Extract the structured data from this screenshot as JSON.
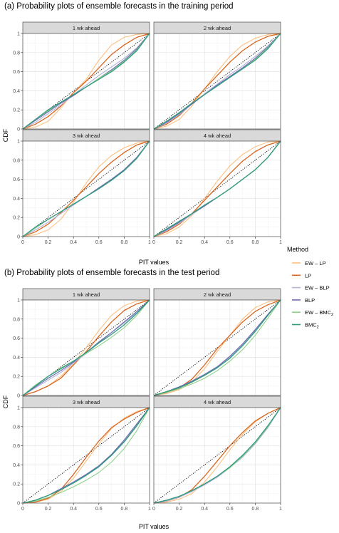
{
  "chart_data": [
    {
      "type": "line",
      "title": "(a) Probability plots of ensemble forecasts in the training period",
      "xlabel": "PIT values",
      "ylabel": "CDF",
      "xlim": [
        0,
        1
      ],
      "ylim": [
        0,
        1
      ],
      "x_ticks": [
        "0",
        "0.2",
        "0.4",
        "0.6",
        "0.8",
        "1"
      ],
      "y_ticks": [
        "0",
        "0.2",
        "0.4",
        "0.6",
        "0.8",
        "1"
      ],
      "grid": true,
      "reference_line": "diagonal, dotted",
      "x": [
        0,
        0.1,
        0.2,
        0.3,
        0.4,
        0.5,
        0.6,
        0.7,
        0.8,
        0.9,
        1
      ],
      "panels": [
        {
          "label": "1 wk ahead",
          "series": [
            {
              "name": "EW – LP",
              "values": [
                0,
                0.02,
                0.08,
                0.22,
                0.38,
                0.52,
                0.72,
                0.88,
                0.96,
                0.99,
                1
              ]
            },
            {
              "name": "LP",
              "values": [
                0,
                0.05,
                0.13,
                0.24,
                0.38,
                0.5,
                0.64,
                0.78,
                0.88,
                0.96,
                1
              ]
            },
            {
              "name": "EW – BLP",
              "values": [
                0,
                0.07,
                0.16,
                0.25,
                0.36,
                0.46,
                0.56,
                0.65,
                0.74,
                0.85,
                1
              ]
            },
            {
              "name": "BLP",
              "values": [
                0,
                0.09,
                0.18,
                0.27,
                0.35,
                0.44,
                0.53,
                0.62,
                0.72,
                0.84,
                1
              ]
            },
            {
              "name": "EW – BMC₂",
              "values": [
                0,
                0.1,
                0.19,
                0.28,
                0.36,
                0.44,
                0.53,
                0.61,
                0.71,
                0.83,
                1
              ]
            },
            {
              "name": "BMC₂",
              "values": [
                0,
                0.1,
                0.2,
                0.28,
                0.36,
                0.44,
                0.52,
                0.6,
                0.7,
                0.82,
                1
              ]
            }
          ]
        },
        {
          "label": "2 wk ahead",
          "series": [
            {
              "name": "EW – LP",
              "values": [
                0,
                0.03,
                0.1,
                0.24,
                0.42,
                0.6,
                0.76,
                0.88,
                0.95,
                0.99,
                1
              ]
            },
            {
              "name": "LP",
              "values": [
                0,
                0.05,
                0.14,
                0.27,
                0.42,
                0.56,
                0.7,
                0.82,
                0.91,
                0.97,
                1
              ]
            },
            {
              "name": "EW – BLP",
              "values": [
                0,
                0.06,
                0.15,
                0.26,
                0.37,
                0.47,
                0.57,
                0.66,
                0.76,
                0.87,
                1
              ]
            },
            {
              "name": "BLP",
              "values": [
                0,
                0.07,
                0.16,
                0.26,
                0.36,
                0.46,
                0.55,
                0.64,
                0.74,
                0.86,
                1
              ]
            },
            {
              "name": "EW – BMC₂",
              "values": [
                0,
                0.08,
                0.17,
                0.27,
                0.36,
                0.45,
                0.54,
                0.63,
                0.73,
                0.85,
                1
              ]
            },
            {
              "name": "BMC₂",
              "values": [
                0,
                0.08,
                0.17,
                0.27,
                0.36,
                0.45,
                0.54,
                0.63,
                0.72,
                0.84,
                1
              ]
            }
          ]
        },
        {
          "label": "3 wk ahead",
          "series": [
            {
              "name": "EW – LP",
              "values": [
                0,
                0.02,
                0.07,
                0.18,
                0.36,
                0.56,
                0.73,
                0.85,
                0.93,
                0.98,
                1
              ]
            },
            {
              "name": "LP",
              "values": [
                0,
                0.05,
                0.13,
                0.25,
                0.38,
                0.52,
                0.66,
                0.78,
                0.88,
                0.96,
                1
              ]
            },
            {
              "name": "EW – BLP",
              "values": [
                0,
                0.07,
                0.15,
                0.24,
                0.33,
                0.42,
                0.51,
                0.6,
                0.7,
                0.83,
                1
              ]
            },
            {
              "name": "BLP",
              "values": [
                0,
                0.09,
                0.18,
                0.26,
                0.34,
                0.42,
                0.51,
                0.6,
                0.7,
                0.83,
                1
              ]
            },
            {
              "name": "EW – BMC₂",
              "values": [
                0,
                0.09,
                0.18,
                0.26,
                0.34,
                0.42,
                0.5,
                0.59,
                0.69,
                0.82,
                1
              ]
            },
            {
              "name": "BMC₂",
              "values": [
                0,
                0.1,
                0.18,
                0.26,
                0.34,
                0.42,
                0.5,
                0.59,
                0.69,
                0.82,
                1
              ]
            }
          ]
        },
        {
          "label": "4 wk ahead",
          "series": [
            {
              "name": "EW – LP",
              "values": [
                0,
                0.03,
                0.1,
                0.22,
                0.4,
                0.58,
                0.74,
                0.86,
                0.94,
                0.99,
                1
              ]
            },
            {
              "name": "LP",
              "values": [
                0,
                0.05,
                0.13,
                0.24,
                0.38,
                0.52,
                0.66,
                0.79,
                0.89,
                0.96,
                1
              ]
            },
            {
              "name": "EW – BLP",
              "values": [
                0,
                0.06,
                0.14,
                0.23,
                0.32,
                0.41,
                0.5,
                0.6,
                0.7,
                0.83,
                1
              ]
            },
            {
              "name": "BLP",
              "values": [
                0,
                0.07,
                0.15,
                0.24,
                0.32,
                0.41,
                0.5,
                0.6,
                0.7,
                0.83,
                1
              ]
            },
            {
              "name": "EW – BMC₂",
              "values": [
                0,
                0.08,
                0.16,
                0.24,
                0.33,
                0.41,
                0.5,
                0.6,
                0.7,
                0.83,
                1
              ]
            },
            {
              "name": "BMC₂",
              "values": [
                0,
                0.08,
                0.16,
                0.24,
                0.33,
                0.41,
                0.5,
                0.6,
                0.7,
                0.83,
                1
              ]
            }
          ]
        }
      ]
    },
    {
      "type": "line",
      "title": "(b) Probability plots of ensemble forecasts in the test period",
      "xlabel": "PIT values",
      "ylabel": "CDF",
      "xlim": [
        0,
        1
      ],
      "ylim": [
        0,
        1
      ],
      "x_ticks": [
        "0",
        "0.2",
        "0.4",
        "0.6",
        "0.8",
        "1"
      ],
      "y_ticks": [
        "0",
        "0.2",
        "0.4",
        "0.6",
        "0.8",
        "1"
      ],
      "grid": true,
      "reference_line": "diagonal, dotted",
      "x": [
        0,
        0.1,
        0.2,
        0.3,
        0.4,
        0.5,
        0.6,
        0.7,
        0.8,
        0.9,
        1
      ],
      "panels": [
        {
          "label": "1 wk ahead",
          "series": [
            {
              "name": "EW – LP",
              "values": [
                0,
                0.04,
                0.1,
                0.2,
                0.34,
                0.5,
                0.68,
                0.84,
                0.94,
                0.99,
                1
              ]
            },
            {
              "name": "LP",
              "values": [
                0,
                0.04,
                0.1,
                0.18,
                0.32,
                0.46,
                0.62,
                0.77,
                0.89,
                0.96,
                1
              ]
            },
            {
              "name": "EW – BLP",
              "values": [
                0,
                0.08,
                0.16,
                0.24,
                0.34,
                0.44,
                0.55,
                0.66,
                0.76,
                0.87,
                1
              ]
            },
            {
              "name": "BLP",
              "values": [
                0,
                0.09,
                0.18,
                0.26,
                0.35,
                0.45,
                0.56,
                0.66,
                0.77,
                0.88,
                1
              ]
            },
            {
              "name": "EW – BMC₂",
              "values": [
                0,
                0.11,
                0.2,
                0.29,
                0.36,
                0.44,
                0.52,
                0.61,
                0.71,
                0.84,
                1
              ]
            },
            {
              "name": "BMC₂",
              "values": [
                0,
                0.1,
                0.2,
                0.28,
                0.36,
                0.45,
                0.55,
                0.64,
                0.74,
                0.86,
                1
              ]
            }
          ]
        },
        {
          "label": "2 wk ahead",
          "series": [
            {
              "name": "EW – LP",
              "values": [
                0,
                0.02,
                0.06,
                0.14,
                0.28,
                0.46,
                0.63,
                0.8,
                0.92,
                0.98,
                1
              ]
            },
            {
              "name": "LP",
              "values": [
                0,
                0.03,
                0.08,
                0.17,
                0.32,
                0.49,
                0.63,
                0.77,
                0.88,
                0.95,
                1
              ]
            },
            {
              "name": "EW – BLP",
              "values": [
                0,
                0.04,
                0.09,
                0.15,
                0.22,
                0.3,
                0.4,
                0.53,
                0.68,
                0.84,
                1
              ]
            },
            {
              "name": "BLP",
              "values": [
                0,
                0.04,
                0.09,
                0.15,
                0.22,
                0.3,
                0.41,
                0.54,
                0.69,
                0.85,
                1
              ]
            },
            {
              "name": "EW – BMC₂",
              "values": [
                0,
                0.03,
                0.07,
                0.12,
                0.18,
                0.26,
                0.36,
                0.48,
                0.63,
                0.81,
                1
              ]
            },
            {
              "name": "BMC₂",
              "values": [
                0,
                0.04,
                0.08,
                0.14,
                0.21,
                0.29,
                0.39,
                0.52,
                0.67,
                0.84,
                1
              ]
            }
          ]
        },
        {
          "label": "3 wk ahead",
          "series": [
            {
              "name": "EW – LP",
              "values": [
                0,
                0.01,
                0.04,
                0.12,
                0.26,
                0.44,
                0.62,
                0.78,
                0.89,
                0.96,
                1
              ]
            },
            {
              "name": "LP",
              "values": [
                0,
                0.01,
                0.05,
                0.14,
                0.3,
                0.48,
                0.65,
                0.79,
                0.88,
                0.95,
                1
              ]
            },
            {
              "name": "EW – BLP",
              "values": [
                0,
                0.03,
                0.08,
                0.14,
                0.21,
                0.29,
                0.38,
                0.5,
                0.65,
                0.82,
                1
              ]
            },
            {
              "name": "BLP",
              "values": [
                0,
                0.03,
                0.08,
                0.15,
                0.22,
                0.3,
                0.39,
                0.51,
                0.66,
                0.83,
                1
              ]
            },
            {
              "name": "EW – BMC₂",
              "values": [
                0,
                0.02,
                0.06,
                0.11,
                0.17,
                0.24,
                0.32,
                0.43,
                0.57,
                0.76,
                1
              ]
            },
            {
              "name": "BMC₂",
              "values": [
                0,
                0.03,
                0.08,
                0.14,
                0.21,
                0.29,
                0.38,
                0.5,
                0.64,
                0.81,
                1
              ]
            }
          ]
        },
        {
          "label": "4 wk ahead",
          "series": [
            {
              "name": "EW – LP",
              "values": [
                0,
                0.01,
                0.04,
                0.1,
                0.22,
                0.38,
                0.56,
                0.72,
                0.85,
                0.94,
                1
              ]
            },
            {
              "name": "LP",
              "values": [
                0,
                0.02,
                0.06,
                0.14,
                0.28,
                0.44,
                0.6,
                0.74,
                0.86,
                0.94,
                1
              ]
            },
            {
              "name": "EW – BLP",
              "values": [
                0,
                0.02,
                0.06,
                0.12,
                0.19,
                0.27,
                0.37,
                0.48,
                0.62,
                0.79,
                1
              ]
            },
            {
              "name": "BLP",
              "values": [
                0,
                0.03,
                0.07,
                0.13,
                0.2,
                0.28,
                0.38,
                0.5,
                0.63,
                0.8,
                1
              ]
            },
            {
              "name": "EW – BMC₂",
              "values": [
                0,
                0.03,
                0.07,
                0.13,
                0.2,
                0.28,
                0.37,
                0.49,
                0.63,
                0.8,
                1
              ]
            },
            {
              "name": "BMC₂",
              "values": [
                0,
                0.03,
                0.07,
                0.13,
                0.2,
                0.28,
                0.38,
                0.5,
                0.64,
                0.81,
                1
              ]
            }
          ]
        }
      ]
    }
  ],
  "legend": {
    "title": "Method",
    "placement": "right",
    "items": [
      {
        "label": "EW – LP",
        "sub": "",
        "color": "#fdbf80"
      },
      {
        "label": "LP",
        "sub": "",
        "color": "#d9661f"
      },
      {
        "label": "EW – BLP",
        "sub": "",
        "color": "#b3b3d9"
      },
      {
        "label": "BLP",
        "sub": "",
        "color": "#6a6ab3"
      },
      {
        "label": "EW – BMC",
        "sub": "2",
        "color": "#8fd18a"
      },
      {
        "label": "BMC",
        "sub": "2",
        "color": "#2e9c7d"
      }
    ]
  },
  "colors": {
    "EW – LP": "#fdbf80",
    "LP": "#d9661f",
    "EW – BLP": "#b3b3d9",
    "BLP": "#6a6ab3",
    "EW – BMC₂": "#8fd18a",
    "BMC₂": "#2e9c7d"
  }
}
